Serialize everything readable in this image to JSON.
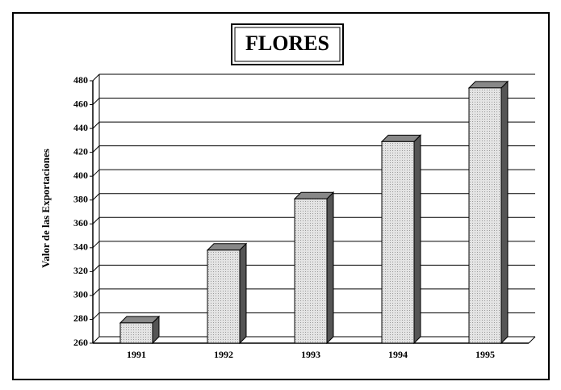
{
  "chart_data": {
    "type": "bar",
    "title": "FLORES",
    "y_label": "Valor de las Exportaciones",
    "categories": [
      "1991",
      "1992",
      "1993",
      "1994",
      "1995"
    ],
    "values": [
      277,
      338,
      381,
      429,
      474
    ],
    "color": "#d4d4d4",
    "ylim": [
      260,
      480
    ],
    "yticks": [
      260,
      280,
      300,
      320,
      340,
      360,
      380,
      400,
      420,
      440,
      460,
      480
    ],
    "grid": true
  }
}
